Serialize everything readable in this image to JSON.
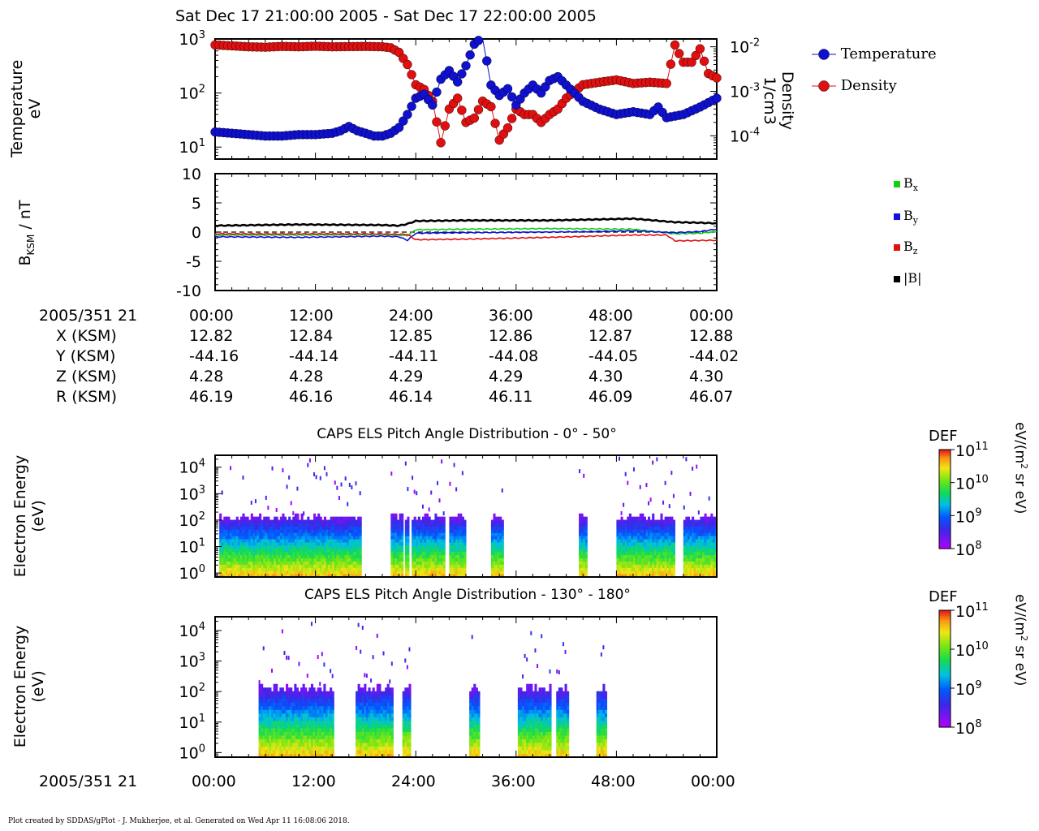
{
  "header": {
    "title": "Sat Dec 17 21:00:00 2005 - Sat Dec 17 22:00:00 2005"
  },
  "colors": {
    "temperature": "#1010d0",
    "density": "#e01010",
    "bx": "#10d010",
    "by": "#1010e0",
    "bz": "#e01010",
    "bmag": "#000000"
  },
  "chart_data": [
    {
      "type": "line",
      "ylabel_left": "Temperature eV",
      "ylabel_left_lines": [
        "Temperature",
        "eV"
      ],
      "ylabel_right_lines": [
        "Density",
        "1/cm3"
      ],
      "yscale": "log",
      "ylim_left": [
        6,
        1000
      ],
      "ylim_right": [
        3e-05,
        0.015
      ],
      "left_ticks": [
        "10^3",
        "10^2",
        "10^1"
      ],
      "right_ticks": [
        "10^-2",
        "10^-3",
        "10^-4"
      ],
      "legend_placement": "right",
      "series": [
        {
          "name": "Temperature",
          "axis": "left",
          "x": [
            0,
            2,
            4,
            6,
            8,
            10,
            12,
            14,
            15,
            16,
            17,
            18,
            19,
            20,
            21,
            22,
            23,
            24,
            25,
            26,
            27,
            28,
            29,
            30,
            31,
            32,
            33,
            34,
            35,
            36,
            37,
            38,
            39,
            40,
            41,
            42,
            44,
            46,
            48,
            50,
            52,
            53,
            54,
            56,
            58,
            60
          ],
          "y": [
            19,
            18,
            17,
            16,
            16,
            17,
            17,
            18,
            20,
            24,
            20,
            18,
            16,
            16,
            18,
            23,
            40,
            80,
            95,
            60,
            180,
            260,
            160,
            320,
            800,
            1100,
            140,
            90,
            120,
            60,
            100,
            140,
            100,
            170,
            200,
            140,
            70,
            50,
            40,
            45,
            40,
            55,
            35,
            40,
            55,
            80
          ]
        },
        {
          "name": "Density",
          "axis": "right",
          "x": [
            0,
            2,
            4,
            6,
            8,
            10,
            12,
            14,
            16,
            18,
            20,
            21,
            22,
            23,
            24,
            25,
            26,
            27,
            28,
            29,
            30,
            31,
            32,
            33,
            34,
            35,
            36,
            37,
            38,
            39,
            40,
            41,
            42,
            43,
            44,
            46,
            48,
            50,
            52,
            54,
            55,
            56,
            57,
            58,
            59,
            60
          ],
          "y": [
            0.011,
            0.0105,
            0.01,
            0.0098,
            0.0102,
            0.01,
            0.0103,
            0.01,
            0.0101,
            0.0102,
            0.01,
            0.0095,
            0.0075,
            0.004,
            0.0014,
            0.0011,
            0.0006,
            7e-05,
            0.0004,
            0.0007,
            0.0002,
            0.00025,
            0.0006,
            0.00045,
            8e-05,
            0.00015,
            0.0004,
            0.0003,
            0.0003,
            0.0002,
            0.0003,
            0.0004,
            0.0007,
            0.001,
            0.0014,
            0.0016,
            0.0018,
            0.0015,
            0.0016,
            0.0015,
            0.011,
            0.0045,
            0.0045,
            0.009,
            0.0025,
            0.002
          ]
        }
      ]
    },
    {
      "type": "line",
      "ylabel": "BKSM / nT",
      "ylabel_main": "B",
      "ylabel_sub": "KSM",
      "ylabel_rest": " / nT",
      "ylim": [
        -10,
        10
      ],
      "yticks": [
        "10",
        "5",
        "0",
        "-5",
        "-10"
      ],
      "legend_placement": "right",
      "series": [
        {
          "name": "Bx",
          "x": [
            0,
            10,
            20,
            23,
            24,
            30,
            40,
            50,
            55,
            58,
            60
          ],
          "y": [
            -0.5,
            -0.5,
            -0.4,
            -0.6,
            0.4,
            0.5,
            0.6,
            0.5,
            -0.3,
            -0.2,
            0.1
          ]
        },
        {
          "name": "By",
          "x": [
            0,
            10,
            20,
            22,
            23,
            24,
            30,
            40,
            50,
            55,
            58,
            60
          ],
          "y": [
            -0.8,
            -0.9,
            -0.7,
            -0.8,
            -1.4,
            -0.2,
            -0.1,
            0.0,
            0.2,
            -0.1,
            0.1,
            0.5
          ]
        },
        {
          "name": "Bz",
          "x": [
            0,
            10,
            20,
            23,
            24,
            30,
            40,
            50,
            54,
            55,
            60
          ],
          "y": [
            -0.3,
            -0.3,
            -0.3,
            -0.4,
            -1.3,
            -1.2,
            -0.9,
            -0.5,
            -0.5,
            -1.5,
            -1.4
          ]
        },
        {
          "name": "|B|",
          "x": [
            0,
            10,
            20,
            22,
            23,
            24,
            30,
            40,
            50,
            55,
            58,
            60
          ],
          "y": [
            1.1,
            1.3,
            1.2,
            1.1,
            1.4,
            1.9,
            2.0,
            2.0,
            2.3,
            1.7,
            1.6,
            1.5
          ]
        }
      ],
      "legend_labels": [
        {
          "main": "B",
          "sub": "x"
        },
        {
          "main": "B",
          "sub": "y"
        },
        {
          "main": "B",
          "sub": "z"
        },
        {
          "main": "|B|",
          "sub": ""
        }
      ]
    },
    {
      "type": "heatmap",
      "title": "CAPS ELS Pitch Angle Distribution - 0° - 50°",
      "ylabel_lines": [
        "Electron Energy",
        "(eV)"
      ],
      "yscale": "log",
      "yticks": [
        "10^4",
        "10^3",
        "10^2",
        "10^1",
        "10^0"
      ],
      "colorbar": {
        "label": "DEF",
        "units": "eV/(m2 sr eV)",
        "range": [
          100000000.0,
          100000000000.0
        ],
        "ticks": [
          "10^11",
          "10^10",
          "10^9",
          "10^8"
        ]
      },
      "blocks": [
        [
          0.5,
          17.5
        ],
        [
          21,
          21.8
        ],
        [
          22,
          22.5
        ],
        [
          22.7,
          23.2
        ],
        [
          23.5,
          27.5
        ],
        [
          28,
          30
        ],
        [
          33,
          34.5
        ],
        [
          43.5,
          44.5
        ],
        [
          48,
          55
        ],
        [
          56,
          60
        ]
      ]
    },
    {
      "type": "heatmap",
      "title": "CAPS ELS Pitch Angle Distribution - 130° - 180°",
      "ylabel_lines": [
        "Electron Energy",
        "(eV)"
      ],
      "yscale": "log",
      "yticks": [
        "10^4",
        "10^3",
        "10^2",
        "10^1",
        "10^0"
      ],
      "colorbar": {
        "label": "DEF",
        "units": "eV/(m2 sr eV)",
        "range": [
          100000000.0,
          100000000000.0
        ],
        "ticks": [
          "10^11",
          "10^10",
          "10^9",
          "10^8"
        ]
      },
      "blocks": [
        [
          5.2,
          14.2
        ],
        [
          16.8,
          21.2
        ],
        [
          22.4,
          23.2
        ],
        [
          30.4,
          31.6
        ],
        [
          36.2,
          40.2
        ],
        [
          40.8,
          42.2
        ],
        [
          45.6,
          46.8
        ]
      ]
    }
  ],
  "xaxis": {
    "date_label": "2005/351 21",
    "ticks": [
      "00:00",
      "12:00",
      "24:00",
      "36:00",
      "48:00",
      "00:00"
    ]
  },
  "orbit": {
    "date_label": "2005/351 21",
    "rows": [
      {
        "label": "X (KSM)",
        "values": [
          "12.82",
          "12.84",
          "12.85",
          "12.86",
          "12.87",
          "12.88"
        ]
      },
      {
        "label": "Y (KSM)",
        "values": [
          "-44.16",
          "-44.14",
          "-44.11",
          "-44.08",
          "-44.05",
          "-44.02"
        ]
      },
      {
        "label": "Z (KSM)",
        "values": [
          "4.28",
          "4.28",
          "4.29",
          "4.29",
          "4.30",
          "4.30"
        ]
      },
      {
        "label": "R (KSM)",
        "values": [
          "46.19",
          "46.16",
          "46.14",
          "46.11",
          "46.09",
          "46.07"
        ]
      }
    ]
  },
  "footer": {
    "text": "Plot created by SDDAS/gPlot - J. Mukherjee, et al.  Generated on Wed Apr 11 16:08:06 2018."
  }
}
